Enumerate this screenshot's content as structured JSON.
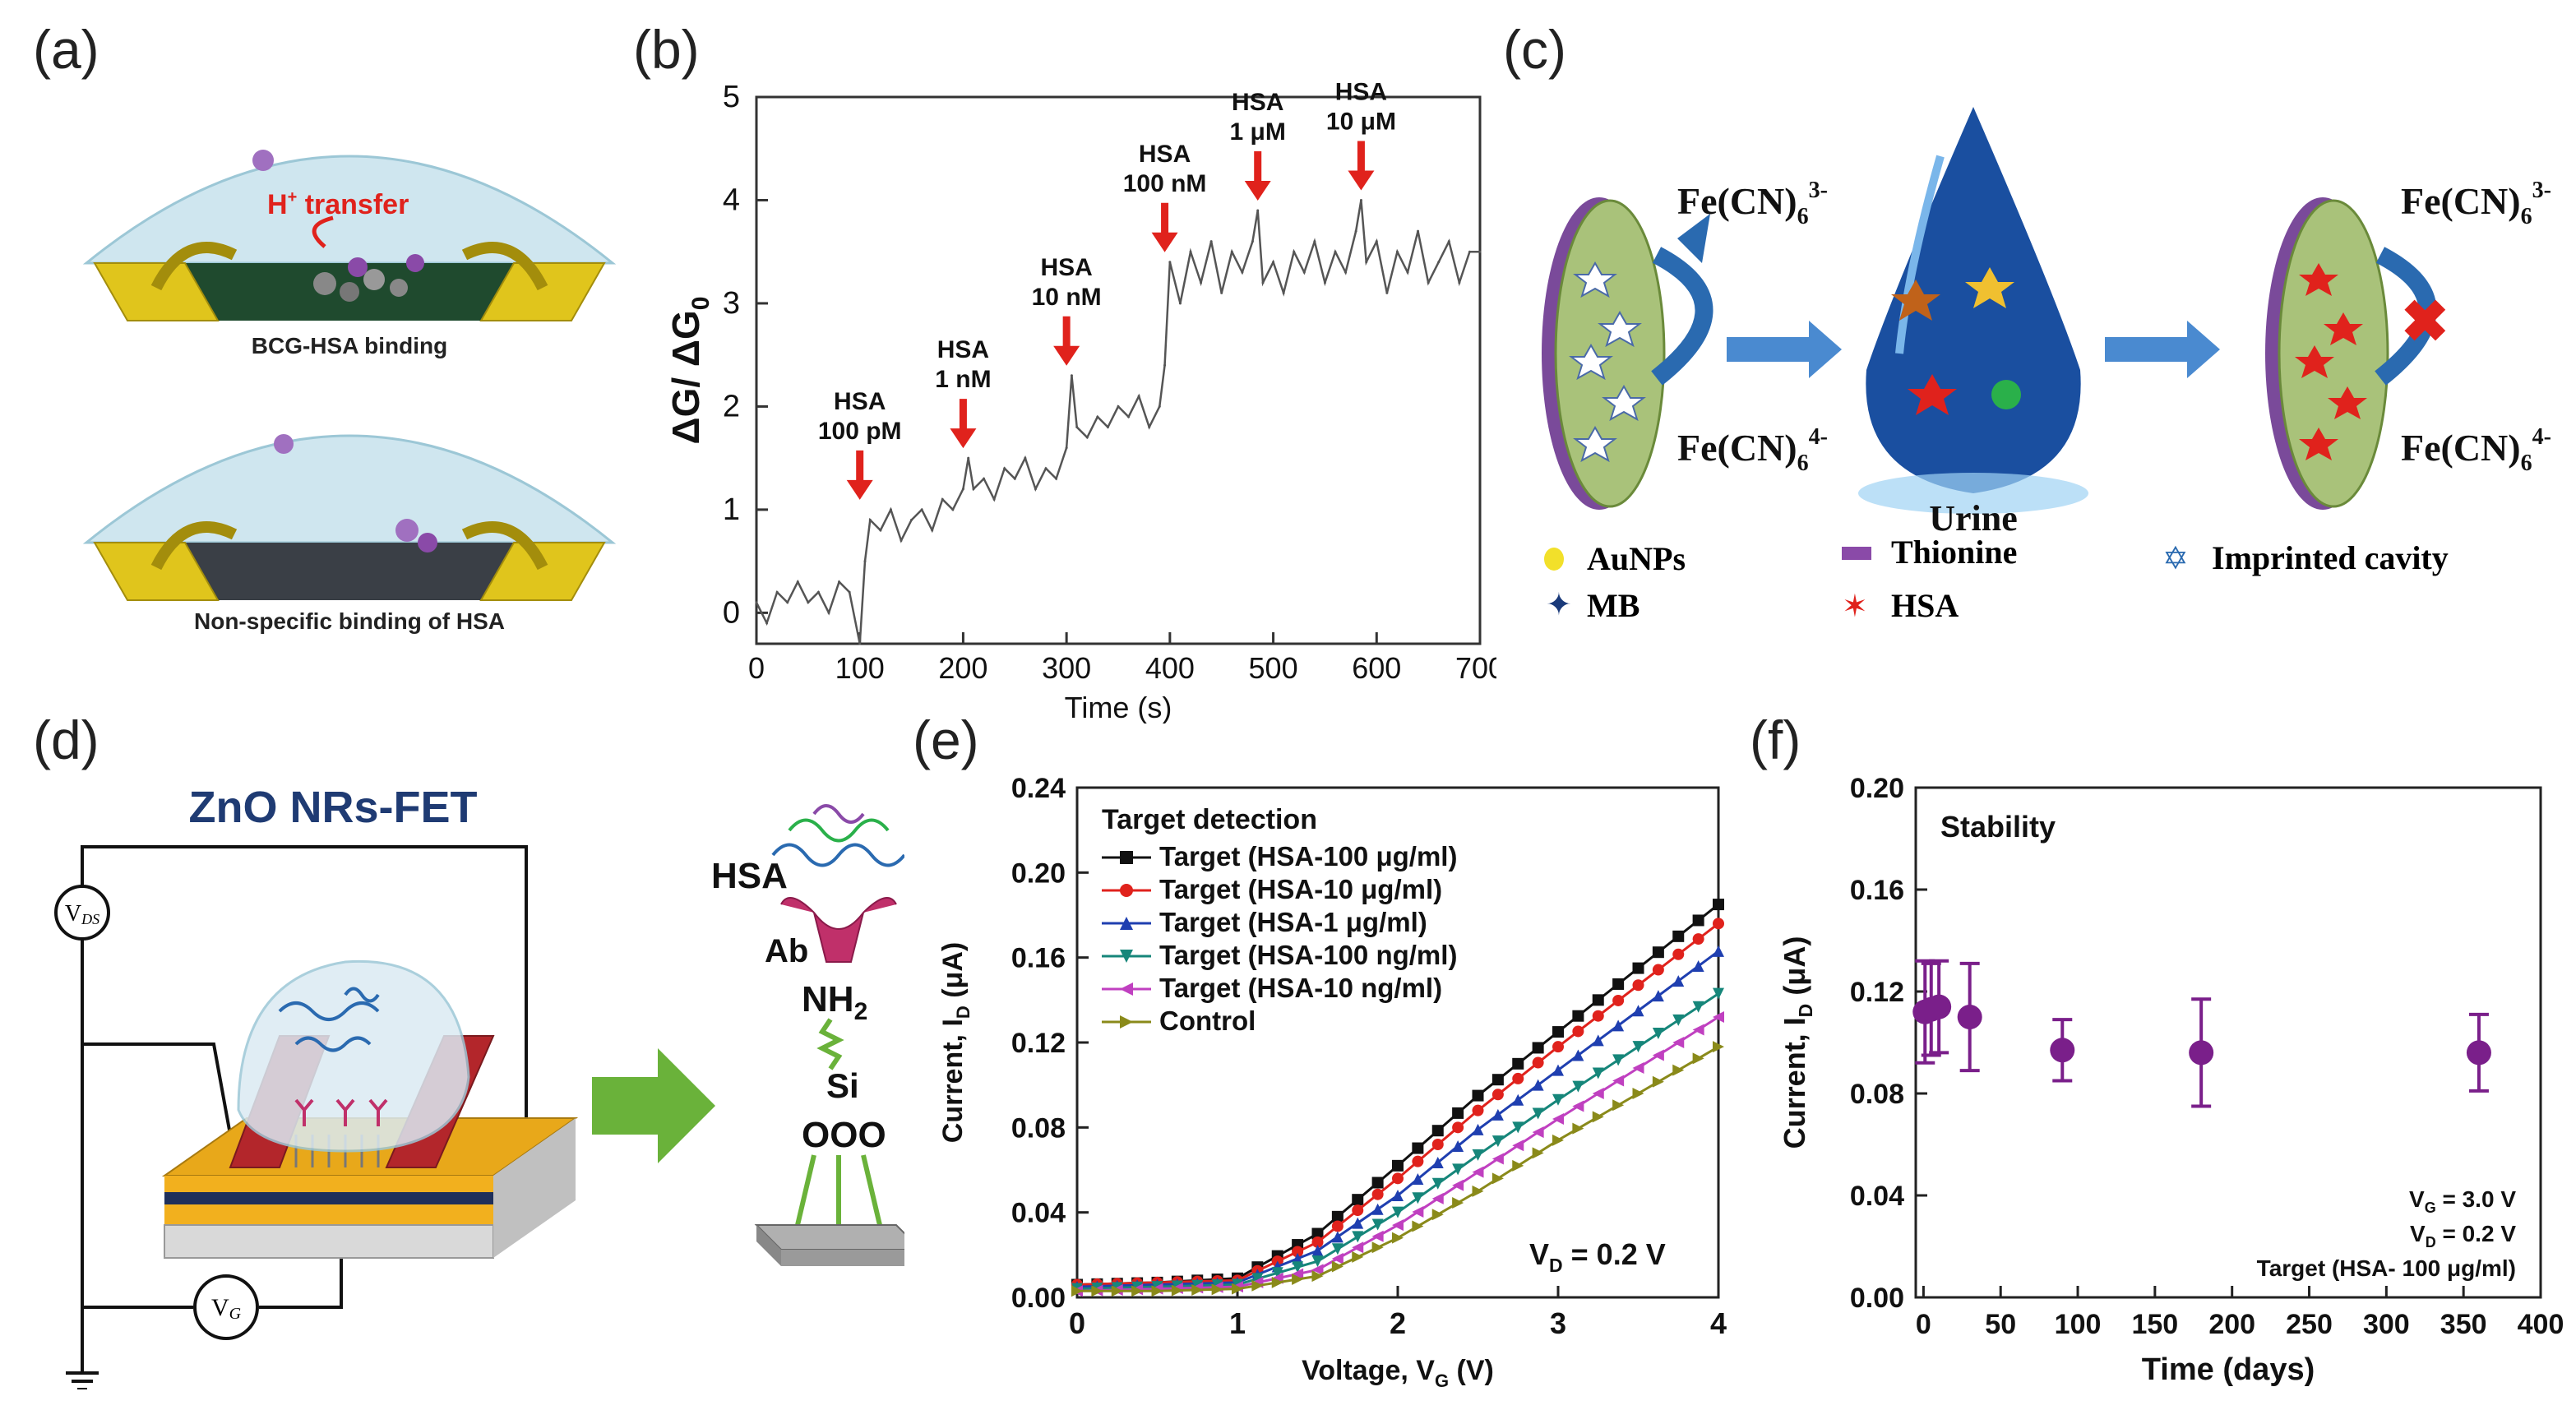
{
  "figure": {
    "labels": [
      "(a)",
      "(b)",
      "(c)",
      "(d)",
      "(e)",
      "(f)"
    ]
  },
  "panel_a": {
    "top_annotation": "H",
    "top_annotation_sup": "+",
    "top_annotation_rest": " transfer",
    "top_caption": "BCG-HSA binding",
    "bottom_caption": "Non-specific binding of HSA",
    "colors": {
      "dome": "#bfe0ec",
      "electrode": "#e0c51c",
      "channel": "#1f4a2e",
      "arrow": "#e0221c"
    }
  },
  "panel_c": {
    "redox_oxidized": "Fe(CN)",
    "redox_ox_sub": "6",
    "redox_ox_sup": "3-",
    "redox_reduced": "Fe(CN)",
    "redox_red_sub": "6",
    "redox_red_sup": "4-",
    "drop_label": "Urine",
    "legend": [
      {
        "name": "AuNPs",
        "icon": "yellow-dot-icon"
      },
      {
        "name": "Thionine",
        "icon": "purple-bar-icon"
      },
      {
        "name": "Imprinted cavity",
        "icon": "star-outline-icon"
      },
      {
        "name": "MB",
        "icon": "plus-star-icon"
      },
      {
        "name": "HSA",
        "icon": "red-star-icon"
      }
    ],
    "block_symbol": "✖"
  },
  "panel_d": {
    "title": "ZnO NRs-FET",
    "vds_label": "V",
    "vds_sub": "DS",
    "vg_label": "V",
    "vg_sub": "G",
    "stack_labels": [
      "HSA",
      "Ab",
      "NH",
      "Si",
      "OOO"
    ],
    "nh_sub": "2",
    "colors": {
      "title": "#1f3b73",
      "electrode": "#b3262b",
      "substrate": "#f2b01e",
      "arrow": "#6ab23a"
    }
  },
  "chart_data": [
    {
      "id": "b",
      "type": "line",
      "title": "",
      "xlabel": "Time (s)",
      "ylabel": "ΔG/ ΔG",
      "ylabel_sub": "0",
      "xlim": [
        0,
        700
      ],
      "ylim": [
        -0.3,
        5
      ],
      "xticks": [
        0,
        100,
        200,
        300,
        400,
        500,
        600,
        700
      ],
      "yticks": [
        0,
        1,
        2,
        3,
        4,
        5
      ],
      "series": [
        {
          "name": "conductance",
          "x": [
            0,
            10,
            20,
            30,
            40,
            50,
            60,
            70,
            80,
            90,
            100,
            105,
            110,
            120,
            130,
            140,
            150,
            160,
            170,
            180,
            190,
            200,
            205,
            210,
            220,
            230,
            240,
            250,
            260,
            270,
            280,
            290,
            300,
            305,
            310,
            320,
            330,
            340,
            350,
            360,
            370,
            380,
            390,
            395,
            400,
            410,
            420,
            430,
            440,
            450,
            460,
            470,
            480,
            485,
            490,
            500,
            510,
            520,
            530,
            540,
            550,
            560,
            570,
            580,
            585,
            590,
            600,
            610,
            620,
            630,
            640,
            650,
            660,
            670,
            680,
            690,
            700
          ],
          "y": [
            0.1,
            -0.1,
            0.2,
            0.1,
            0.3,
            0.1,
            0.2,
            0.0,
            0.3,
            0.2,
            -0.3,
            0.5,
            0.9,
            0.8,
            1.0,
            0.7,
            0.9,
            1.0,
            0.8,
            1.1,
            1.0,
            1.2,
            1.5,
            1.2,
            1.3,
            1.1,
            1.4,
            1.3,
            1.5,
            1.2,
            1.4,
            1.3,
            1.6,
            2.3,
            1.8,
            1.7,
            1.9,
            1.8,
            2.0,
            1.9,
            2.1,
            1.8,
            2.0,
            2.4,
            3.4,
            3.0,
            3.5,
            3.2,
            3.6,
            3.1,
            3.5,
            3.3,
            3.6,
            3.9,
            3.2,
            3.4,
            3.1,
            3.5,
            3.3,
            3.6,
            3.2,
            3.5,
            3.3,
            3.7,
            4.0,
            3.4,
            3.6,
            3.1,
            3.5,
            3.3,
            3.7,
            3.2,
            3.4,
            3.6,
            3.2,
            3.5,
            3.5
          ]
        }
      ],
      "annotations": [
        {
          "lines": [
            "HSA",
            "100 pM"
          ],
          "x": 100,
          "y": 1.0
        },
        {
          "lines": [
            "HSA",
            "1 nM"
          ],
          "x": 200,
          "y": 1.5
        },
        {
          "lines": [
            "HSA",
            "10 nM"
          ],
          "x": 300,
          "y": 2.3
        },
        {
          "lines": [
            "HSA",
            "100 nM"
          ],
          "x": 395,
          "y": 3.4
        },
        {
          "lines": [
            "HSA",
            "1 μM"
          ],
          "x": 485,
          "y": 3.9
        },
        {
          "lines": [
            "HSA",
            "10 μM"
          ],
          "x": 585,
          "y": 4.0
        }
      ],
      "line_color": "#555555",
      "arrow_color": "#e0221c"
    },
    {
      "id": "e",
      "type": "line",
      "title": "Target detection",
      "xlabel": "Voltage, V",
      "xlabel_sub": "G",
      "xlabel_unit": " (V)",
      "ylabel": "Current, I",
      "ylabel_sub": "D",
      "ylabel_unit": " (μA)",
      "xlim": [
        0,
        4
      ],
      "ylim": [
        0,
        0.24
      ],
      "xticks": [
        0,
        1,
        2,
        3,
        4
      ],
      "yticks": [
        0.0,
        0.04,
        0.08,
        0.12,
        0.16,
        0.2,
        0.24
      ],
      "annotation": "V",
      "annotation_sub": "D",
      "annotation_rest": " = 0.2 V",
      "series": [
        {
          "name": "Target (HSA-100 μg/ml)",
          "color": "#111111",
          "marker": "square",
          "x": [
            0,
            0.5,
            1.0,
            1.5,
            2.0,
            2.5,
            3.0,
            3.5,
            4.0
          ],
          "y": [
            0.006,
            0.007,
            0.009,
            0.03,
            0.062,
            0.095,
            0.125,
            0.155,
            0.185
          ]
        },
        {
          "name": "Target (HSA-10 μg/ml)",
          "color": "#e0221c",
          "marker": "circle",
          "x": [
            0,
            0.5,
            1.0,
            1.5,
            2.0,
            2.5,
            3.0,
            3.5,
            4.0
          ],
          "y": [
            0.006,
            0.007,
            0.008,
            0.026,
            0.056,
            0.088,
            0.118,
            0.147,
            0.176
          ]
        },
        {
          "name": "Target (HSA-1 μg/ml)",
          "color": "#1f3fb0",
          "marker": "triangle-up",
          "x": [
            0,
            0.5,
            1.0,
            1.5,
            2.0,
            2.5,
            3.0,
            3.5,
            4.0
          ],
          "y": [
            0.005,
            0.006,
            0.007,
            0.022,
            0.048,
            0.079,
            0.107,
            0.135,
            0.163
          ]
        },
        {
          "name": "Target (HSA-100 ng/ml)",
          "color": "#16867a",
          "marker": "triangle-down",
          "x": [
            0,
            0.5,
            1.0,
            1.5,
            2.0,
            2.5,
            3.0,
            3.5,
            4.0
          ],
          "y": [
            0.004,
            0.005,
            0.006,
            0.017,
            0.04,
            0.067,
            0.093,
            0.118,
            0.143
          ]
        },
        {
          "name": "Target (HSA-10 ng/ml)",
          "color": "#c040c0",
          "marker": "triangle-left",
          "x": [
            0,
            0.5,
            1.0,
            1.5,
            2.0,
            2.5,
            3.0,
            3.5,
            4.0
          ],
          "y": [
            0.003,
            0.004,
            0.005,
            0.013,
            0.034,
            0.059,
            0.084,
            0.108,
            0.132
          ]
        },
        {
          "name": "Control",
          "color": "#8a8a1a",
          "marker": "triangle-right",
          "x": [
            0,
            0.5,
            1.0,
            1.5,
            2.0,
            2.5,
            3.0,
            3.5,
            4.0
          ],
          "y": [
            0.003,
            0.003,
            0.004,
            0.01,
            0.028,
            0.05,
            0.074,
            0.096,
            0.118
          ]
        }
      ]
    },
    {
      "id": "f",
      "type": "scatter",
      "title": "Stability",
      "xlabel": "Time (days)",
      "ylabel": "Current, I",
      "ylabel_sub": "D",
      "ylabel_unit": " (μA)",
      "xlim": [
        -5,
        400
      ],
      "ylim": [
        0,
        0.2
      ],
      "xticks": [
        0,
        50,
        100,
        150,
        200,
        250,
        300,
        350,
        400
      ],
      "yticks": [
        0.0,
        0.04,
        0.08,
        0.12,
        0.16,
        0.2
      ],
      "color": "#7a1f8a",
      "points": [
        {
          "x": 1,
          "y": 0.112,
          "err": 0.02
        },
        {
          "x": 5,
          "y": 0.113,
          "err": 0.018
        },
        {
          "x": 10,
          "y": 0.114,
          "err": 0.018
        },
        {
          "x": 30,
          "y": 0.11,
          "err": 0.021
        },
        {
          "x": 90,
          "y": 0.097,
          "err": 0.012
        },
        {
          "x": 180,
          "y": 0.096,
          "err": 0.021
        },
        {
          "x": 360,
          "y": 0.096,
          "err": 0.015
        }
      ],
      "notes": [
        {
          "main": "V",
          "sub": "G",
          "rest": " = 3.0 V"
        },
        {
          "main": "V",
          "sub": "D",
          "rest": " = 0.2 V"
        },
        {
          "main": "Target (HSA- 100 μg/ml)",
          "sub": "",
          "rest": ""
        }
      ]
    }
  ]
}
